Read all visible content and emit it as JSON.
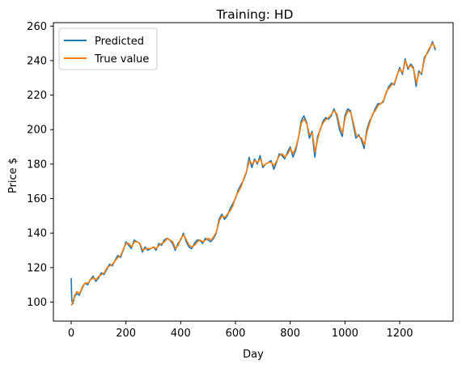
{
  "chart_data": {
    "type": "line",
    "title": "Training: HD",
    "xlabel": "Day",
    "ylabel": "Price $",
    "xlim": [
      -65,
      1395
    ],
    "ylim": [
      89,
      262
    ],
    "xticks": [
      0,
      200,
      400,
      600,
      800,
      1000,
      1200
    ],
    "yticks": [
      100,
      120,
      140,
      160,
      180,
      200,
      220,
      240,
      260
    ],
    "grid": false,
    "legend_position": "upper-left",
    "series": [
      {
        "name": "Predicted",
        "color": "#1f77b4",
        "x": [
          0,
          2,
          6,
          12,
          20,
          30,
          40,
          50,
          60,
          70,
          80,
          90,
          100,
          110,
          120,
          130,
          140,
          150,
          160,
          170,
          180,
          190,
          200,
          210,
          220,
          230,
          240,
          250,
          260,
          270,
          280,
          290,
          300,
          310,
          320,
          330,
          340,
          350,
          360,
          370,
          380,
          390,
          400,
          410,
          420,
          430,
          440,
          450,
          460,
          470,
          480,
          490,
          500,
          510,
          520,
          530,
          540,
          550,
          560,
          570,
          580,
          590,
          600,
          610,
          620,
          630,
          640,
          650,
          660,
          670,
          680,
          690,
          700,
          710,
          720,
          730,
          740,
          750,
          760,
          770,
          780,
          790,
          800,
          810,
          820,
          830,
          840,
          850,
          860,
          870,
          880,
          890,
          900,
          910,
          920,
          930,
          940,
          950,
          960,
          970,
          980,
          990,
          1000,
          1010,
          1020,
          1030,
          1040,
          1050,
          1060,
          1070,
          1080,
          1090,
          1100,
          1110,
          1120,
          1130,
          1140,
          1150,
          1160,
          1170,
          1180,
          1190,
          1200,
          1210,
          1220,
          1230,
          1240,
          1250,
          1260,
          1270,
          1280,
          1290,
          1300,
          1310,
          1320,
          1330
        ],
        "y": [
          114,
          101,
          99,
          103,
          105,
          104,
          108,
          111,
          110,
          113,
          115,
          112,
          114,
          117,
          116,
          119,
          122,
          121,
          124,
          127,
          126,
          130,
          135,
          133,
          131,
          136,
          135,
          134,
          129,
          132,
          130,
          131,
          132,
          130,
          134,
          133,
          136,
          137,
          136,
          134,
          130,
          134,
          136,
          140,
          135,
          132,
          131,
          134,
          136,
          136,
          134,
          137,
          136,
          135,
          137,
          140,
          148,
          151,
          148,
          150,
          154,
          157,
          160,
          165,
          168,
          171,
          175,
          184,
          178,
          183,
          180,
          185,
          178,
          180,
          181,
          182,
          177,
          181,
          186,
          185,
          183,
          187,
          190,
          184,
          188,
          195,
          205,
          208,
          204,
          195,
          199,
          184,
          196,
          200,
          205,
          207,
          206,
          208,
          212,
          208,
          200,
          196,
          208,
          212,
          211,
          203,
          195,
          197,
          194,
          189,
          200,
          205,
          208,
          212,
          215,
          215,
          216,
          221,
          225,
          227,
          226,
          231,
          236,
          232,
          241,
          235,
          238,
          236,
          225,
          234,
          232,
          242,
          244,
          247,
          251,
          246
        ]
      },
      {
        "name": "True value",
        "color": "#ff7f0e",
        "x": [
          0,
          3,
          7,
          13,
          21,
          31,
          41,
          51,
          61,
          71,
          81,
          91,
          101,
          111,
          121,
          131,
          141,
          151,
          161,
          171,
          181,
          191,
          201,
          211,
          221,
          231,
          241,
          251,
          261,
          271,
          281,
          291,
          301,
          311,
          321,
          331,
          341,
          351,
          361,
          371,
          381,
          391,
          401,
          411,
          421,
          431,
          441,
          451,
          461,
          471,
          481,
          491,
          501,
          511,
          521,
          531,
          541,
          551,
          561,
          571,
          581,
          591,
          601,
          611,
          621,
          631,
          641,
          651,
          661,
          671,
          681,
          691,
          701,
          711,
          721,
          731,
          741,
          751,
          761,
          771,
          781,
          791,
          801,
          811,
          821,
          831,
          841,
          851,
          861,
          871,
          881,
          891,
          901,
          911,
          921,
          931,
          941,
          951,
          961,
          971,
          981,
          991,
          1001,
          1011,
          1021,
          1031,
          1041,
          1051,
          1061,
          1071,
          1081,
          1091,
          1101,
          1111,
          1121,
          1131,
          1141,
          1151,
          1161,
          1171,
          1181,
          1191,
          1201,
          1211,
          1221,
          1231,
          1241,
          1251,
          1261,
          1271,
          1281,
          1291,
          1301,
          1311,
          1321,
          1331
        ],
        "y": [
          98,
          99,
          101,
          104,
          106,
          105,
          109,
          111,
          111,
          113,
          114,
          113,
          115,
          116,
          117,
          120,
          121,
          122,
          124,
          126,
          127,
          131,
          134,
          134,
          132,
          135,
          135,
          134,
          130,
          131,
          131,
          131,
          132,
          131,
          133,
          134,
          135,
          137,
          136,
          135,
          131,
          133,
          137,
          139,
          136,
          133,
          132,
          133,
          135,
          136,
          135,
          136,
          137,
          136,
          138,
          141,
          147,
          150,
          149,
          151,
          153,
          156,
          161,
          164,
          167,
          172,
          176,
          182,
          180,
          182,
          181,
          183,
          179,
          180,
          181,
          181,
          179,
          182,
          185,
          186,
          184,
          186,
          189,
          186,
          190,
          196,
          204,
          206,
          203,
          197,
          198,
          187,
          195,
          201,
          204,
          206,
          207,
          209,
          211,
          209,
          202,
          198,
          207,
          211,
          210,
          204,
          197,
          196,
          195,
          191,
          199,
          204,
          209,
          211,
          214,
          215,
          217,
          222,
          224,
          226,
          227,
          232,
          235,
          233,
          240,
          236,
          237,
          235,
          227,
          233,
          233,
          241,
          245,
          248,
          250,
          247
        ]
      }
    ]
  }
}
